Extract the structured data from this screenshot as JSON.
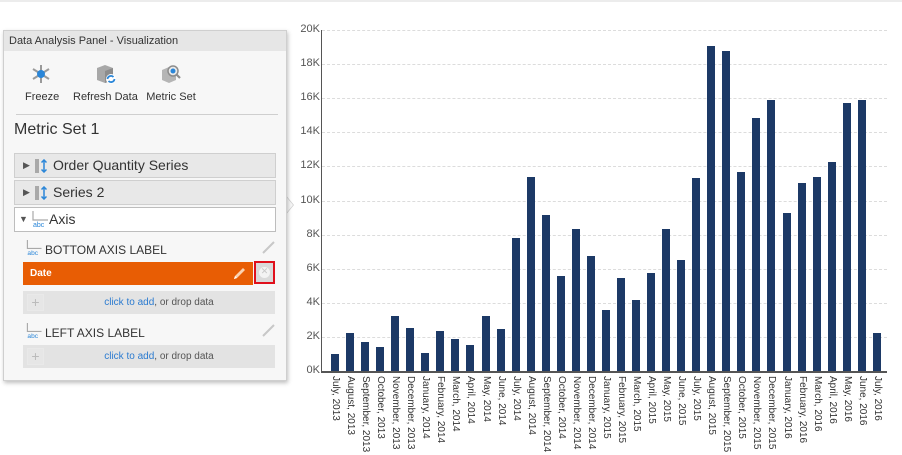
{
  "panel": {
    "title": "Data Analysis Panel - Visualization",
    "toolbar": [
      {
        "label": "Freeze",
        "icon": "snowflake-icon"
      },
      {
        "label": "Refresh Data",
        "icon": "refresh-cube-icon"
      },
      {
        "label": "Metric Set",
        "icon": "metric-set-search-icon"
      }
    ],
    "metric_set_title": "Metric Set 1",
    "sections": [
      {
        "label": "Order Quantity Series",
        "expanded": false,
        "icon": "series-icon"
      },
      {
        "label": "Series 2",
        "expanded": false,
        "icon": "series-icon"
      },
      {
        "label": "Axis",
        "expanded": true,
        "icon": "axis-abc-icon"
      }
    ],
    "bottom_axis": {
      "label": "BOTTOM AXIS LABEL",
      "field": "Date",
      "field_color": "#e85d04",
      "drop_link": "click to add",
      "drop_text": ", or drop data"
    },
    "left_axis": {
      "label": "LEFT AXIS LABEL",
      "drop_link": "click to add",
      "drop_text": ", or drop data"
    },
    "highlight_color": "#e0101c"
  },
  "chart_data": {
    "type": "bar",
    "title": "",
    "xlabel": "",
    "ylabel": "",
    "ylim": [
      0,
      20000
    ],
    "y_ticks": [
      "0K",
      "2K",
      "4K",
      "6K",
      "8K",
      "10K",
      "12K",
      "14K",
      "16K",
      "18K",
      "20K"
    ],
    "grid": true,
    "bar_color": "#1c3966",
    "categories": [
      "July, 2013",
      "August, 2013",
      "September, 2013",
      "October, 2013",
      "November, 2013",
      "December, 2013",
      "January, 2014",
      "February, 2014",
      "March, 2014",
      "April, 2014",
      "May, 2014",
      "June, 2014",
      "July, 2014",
      "August, 2014",
      "September, 2014",
      "October, 2014",
      "November, 2014",
      "December, 2014",
      "January, 2015",
      "February, 2015",
      "March, 2015",
      "April, 2015",
      "May, 2015",
      "June, 2015",
      "July, 2015",
      "August, 2015",
      "September, 2015",
      "October, 2015",
      "November, 2015",
      "December, 2015",
      "January, 2016",
      "February, 2016",
      "March, 2016",
      "April, 2016",
      "May, 2016",
      "June, 2016",
      "July, 2016"
    ],
    "values": [
      1000,
      2200,
      1700,
      1400,
      3200,
      2500,
      1050,
      2350,
      1900,
      1500,
      3200,
      2450,
      7800,
      11400,
      9150,
      5600,
      8300,
      6750,
      3600,
      5450,
      4150,
      5750,
      8300,
      6500,
      11300,
      19050,
      18750,
      11650,
      14850,
      15900,
      9250,
      11000,
      11400,
      12250,
      15700,
      15900,
      2250
    ]
  }
}
